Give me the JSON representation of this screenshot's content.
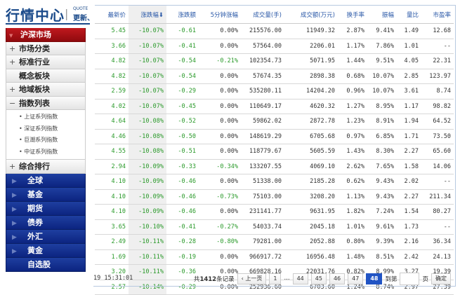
{
  "logo": {
    "title": "行情中心",
    "sub": "QUOTE",
    "sub2": "更新、"
  },
  "sidebar": {
    "active": "沪深市场",
    "items": [
      {
        "pm": "+",
        "label": "市场分类"
      },
      {
        "pm": "+",
        "label": "标准行业"
      },
      {
        "pm": "",
        "label": "概念板块"
      },
      {
        "pm": "+",
        "label": "地域板块"
      },
      {
        "pm": "−",
        "label": "指数列表"
      }
    ],
    "sub": [
      "• 上证系列指数",
      "• 深证系列指数",
      "• 巨潮系列指数",
      "• 中证系列指数"
    ],
    "after": {
      "pm": "+",
      "label": "综合排行"
    },
    "blue": [
      "全球",
      "基金",
      "期货",
      "债券",
      "外汇",
      "黄金"
    ],
    "last": "自选股"
  },
  "table": {
    "headers": [
      "最新价",
      "涨跌幅⬇",
      "涨跌额",
      "5分钟涨幅",
      "成交量(手)",
      "成交额(万元)",
      "换手率",
      "振幅",
      "量比",
      "市盈率"
    ],
    "rows": [
      [
        "5.45",
        "-10.07%",
        "-0.61",
        "0.00%",
        "215576.00",
        "11949.32",
        "2.87%",
        "9.41%",
        "1.49",
        "12.68"
      ],
      [
        "3.66",
        "-10.07%",
        "-0.41",
        "0.00%",
        "57564.00",
        "2206.01",
        "1.17%",
        "7.86%",
        "1.01",
        "--"
      ],
      [
        "4.82",
        "-10.07%",
        "-0.54",
        "-0.21%",
        "102354.73",
        "5071.95",
        "1.44%",
        "9.51%",
        "4.05",
        "22.31"
      ],
      [
        "4.82",
        "-10.07%",
        "-0.54",
        "0.00%",
        "57674.35",
        "2898.38",
        "0.68%",
        "10.07%",
        "2.85",
        "123.97"
      ],
      [
        "2.59",
        "-10.07%",
        "-0.29",
        "0.00%",
        "535280.11",
        "14204.20",
        "0.96%",
        "10.07%",
        "3.61",
        "8.74"
      ],
      [
        "4.02",
        "-10.07%",
        "-0.45",
        "0.00%",
        "110649.17",
        "4620.32",
        "1.27%",
        "8.95%",
        "1.17",
        "98.82"
      ],
      [
        "4.64",
        "-10.08%",
        "-0.52",
        "0.00%",
        "59862.02",
        "2872.78",
        "1.23%",
        "8.91%",
        "1.94",
        "64.52"
      ],
      [
        "4.46",
        "-10.08%",
        "-0.50",
        "0.00%",
        "148619.29",
        "6705.68",
        "0.97%",
        "6.85%",
        "1.71",
        "73.50"
      ],
      [
        "4.55",
        "-10.08%",
        "-0.51",
        "0.00%",
        "118779.67",
        "5605.59",
        "1.43%",
        "8.30%",
        "2.27",
        "65.60"
      ],
      [
        "2.94",
        "-10.09%",
        "-0.33",
        "-0.34%",
        "133207.55",
        "4069.10",
        "2.62%",
        "7.65%",
        "1.58",
        "14.06"
      ],
      [
        "4.10",
        "-10.09%",
        "-0.46",
        "0.00%",
        "51338.00",
        "2185.28",
        "0.62%",
        "9.43%",
        "2.02",
        "--"
      ],
      [
        "4.10",
        "-10.09%",
        "-0.46",
        "-0.73%",
        "75103.00",
        "3208.20",
        "1.13%",
        "9.43%",
        "2.27",
        "211.34"
      ],
      [
        "4.10",
        "-10.09%",
        "-0.46",
        "0.00%",
        "231141.77",
        "9631.95",
        "1.82%",
        "7.24%",
        "1.54",
        "80.27"
      ],
      [
        "3.65",
        "-10.10%",
        "-0.41",
        "-0.27%",
        "54033.74",
        "2045.18",
        "1.01%",
        "9.61%",
        "1.73",
        "--"
      ],
      [
        "2.49",
        "-10.11%",
        "-0.28",
        "-0.80%",
        "79281.00",
        "2052.88",
        "0.80%",
        "9.39%",
        "2.16",
        "36.34"
      ],
      [
        "1.69",
        "-10.11%",
        "-0.19",
        "0.00%",
        "966917.72",
        "16956.48",
        "1.48%",
        "8.51%",
        "2.42",
        "24.13"
      ],
      [
        "3.20",
        "-10.11%",
        "-0.36",
        "0.00%",
        "669828.16",
        "22031.76",
        "0.82%",
        "8.99%",
        "3.27",
        "19.39"
      ],
      [
        "2.57",
        "-10.14%",
        "-0.29",
        "0.00%",
        "252936.60",
        "6703.60",
        "1.24%",
        "8.74%",
        "2.97",
        "27.39"
      ]
    ]
  },
  "footer": {
    "time": "19 15:31:01",
    "total_prefix": "共",
    "total": "1412",
    "total_suffix": "条记录",
    "prev": "‹ 上一页",
    "pages": [
      "1",
      "...",
      "44",
      "45",
      "46",
      "47",
      "48"
    ],
    "current": "48",
    "goto_prefix": "到第",
    "goto_suffix": "页",
    "confirm": "确定"
  },
  "colors": {
    "down": "#2a9a2a",
    "active_red": "#c0191e",
    "nav_blue": "#1e3fa0",
    "header_text": "#2c5aa8"
  }
}
